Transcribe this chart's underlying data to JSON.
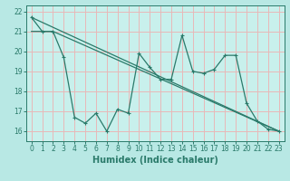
{
  "title": "",
  "xlabel": "Humidex (Indice chaleur)",
  "background_color": "#b8e8e4",
  "plot_bg_color": "#c8f0ec",
  "grid_color": "#e8b8b8",
  "line_color": "#2a7a6a",
  "spine_color": "#2a7a6a",
  "xlim": [
    -0.5,
    23.5
  ],
  "ylim": [
    15.5,
    22.3
  ],
  "xticks": [
    0,
    1,
    2,
    3,
    4,
    5,
    6,
    7,
    8,
    9,
    10,
    11,
    12,
    13,
    14,
    15,
    16,
    17,
    18,
    19,
    20,
    21,
    22,
    23
  ],
  "yticks": [
    16,
    17,
    18,
    19,
    20,
    21,
    22
  ],
  "series1_x": [
    0,
    1,
    2,
    3,
    4,
    5,
    6,
    7,
    8,
    9,
    10,
    11,
    12,
    13,
    14,
    15,
    16,
    17,
    18,
    19,
    20,
    21,
    22,
    23
  ],
  "series1_y": [
    21.7,
    21.0,
    21.0,
    19.7,
    16.7,
    16.4,
    16.9,
    16.0,
    17.1,
    16.9,
    19.9,
    19.2,
    18.6,
    18.6,
    20.8,
    19.0,
    18.9,
    19.1,
    19.8,
    19.8,
    17.4,
    16.5,
    16.1,
    16.0
  ],
  "series2_x": [
    0,
    23
  ],
  "series2_y": [
    21.7,
    16.0
  ],
  "series3_x": [
    0,
    2,
    23
  ],
  "series3_y": [
    21.0,
    21.0,
    16.0
  ]
}
